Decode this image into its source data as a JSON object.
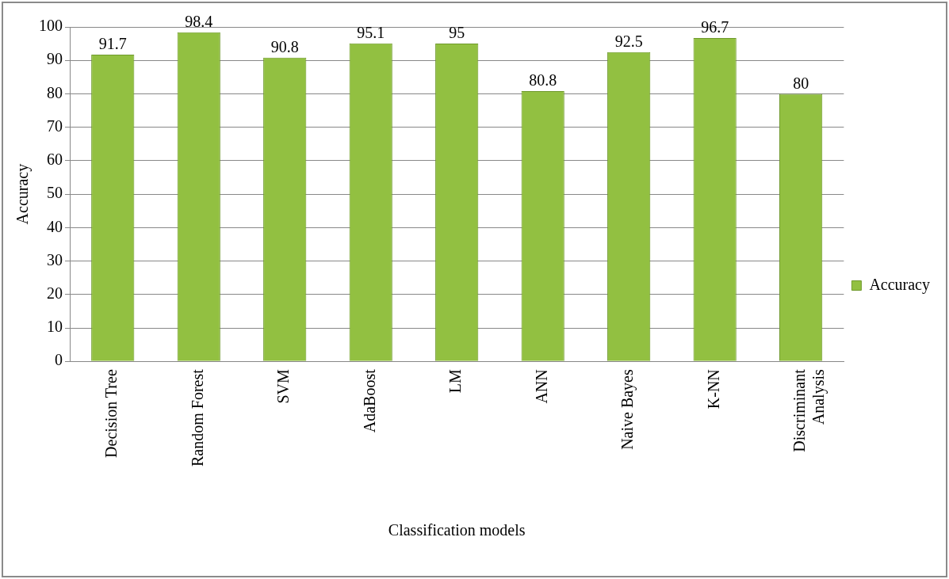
{
  "chart_data": {
    "type": "bar",
    "xlabel": "Classification models",
    "ylabel": "Accuracy",
    "categories": [
      "Decision Tree",
      "Random Forest",
      "SVM",
      "AdaBoost",
      "LM",
      "ANN",
      "Naive Bayes",
      "K-NN",
      "Discriminant Analysis"
    ],
    "series": [
      {
        "name": "Accuracy",
        "color": "#92c041",
        "values": [
          91.7,
          98.4,
          90.8,
          95.1,
          95,
          80.8,
          92.5,
          96.7,
          80
        ]
      }
    ],
    "ylim": [
      0,
      100
    ],
    "yticks": [
      0,
      10,
      20,
      30,
      40,
      50,
      60,
      70,
      80,
      90,
      100
    ],
    "grid": "y",
    "legend": "right",
    "data_labels": true
  }
}
